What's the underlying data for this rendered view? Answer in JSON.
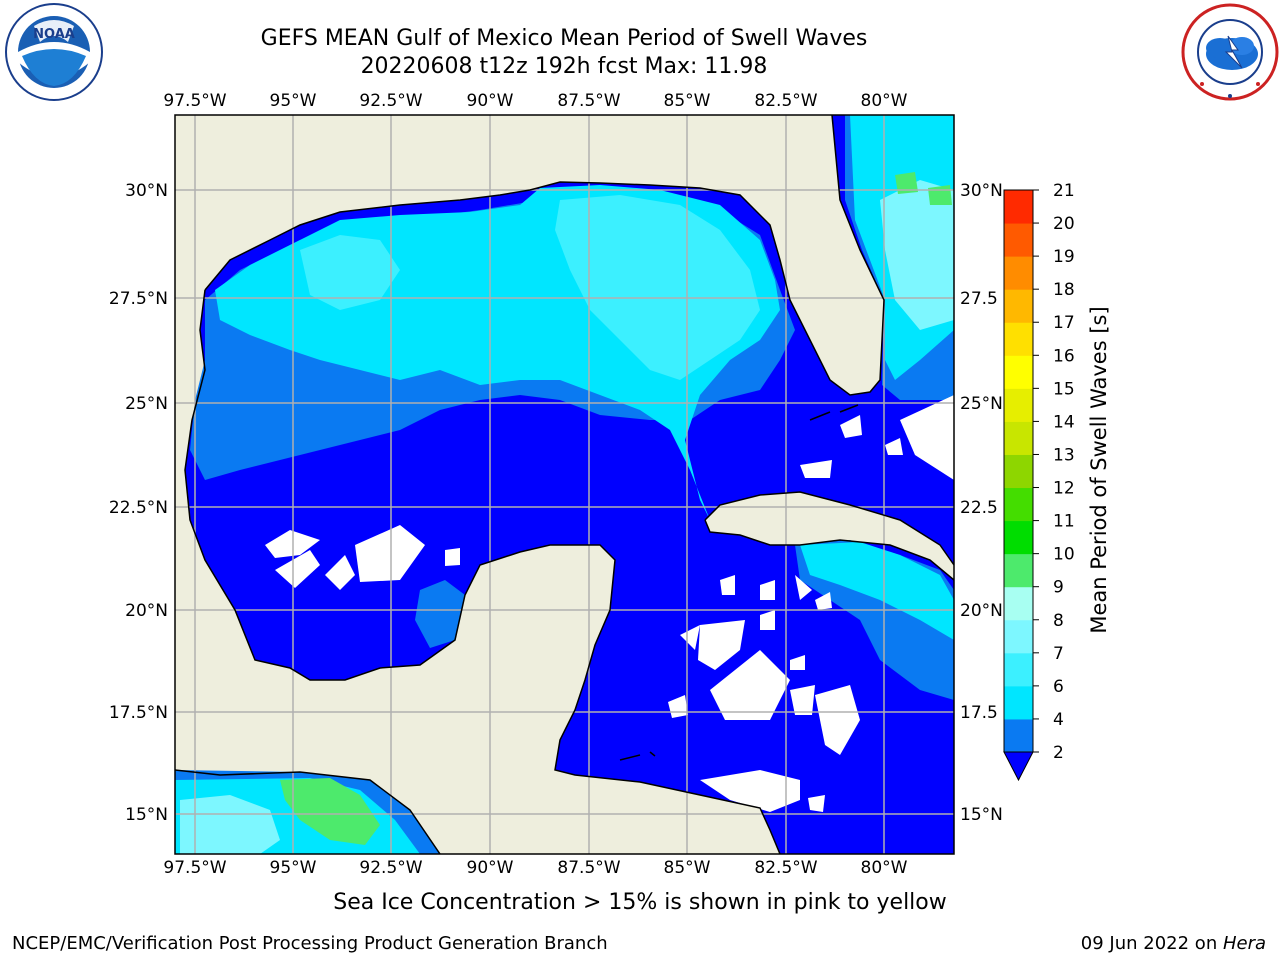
{
  "header": {
    "title": "GEFS MEAN Gulf of Mexico Mean Period of Swell Waves",
    "subtitle": "20220608 t12z 192h fcst   Max: 11.98"
  },
  "map": {
    "lon_labels": [
      "97.5°W",
      "95°W",
      "92.5°W",
      "90°W",
      "87.5°W",
      "85°W",
      "82.5°W",
      "80°W"
    ],
    "lat_labels_left": [
      "30°N",
      "27.5°N",
      "25°N",
      "22.5°N",
      "20°N",
      "17.5°N",
      "15°N"
    ],
    "lat_labels_right": [
      "30°N",
      "27.5",
      "25°N",
      "22.5",
      "20°N",
      "17.5",
      "15°N"
    ],
    "colors": {
      "land": "#eeeedd",
      "no_data": "#ffffff",
      "grid": "#b0b0b0",
      "coast": "#000000"
    }
  },
  "colorbar": {
    "label": "Mean Period of Swell Waves [s]",
    "ticks": [
      "2",
      "4",
      "6",
      "7",
      "8",
      "9",
      "10",
      "11",
      "12",
      "13",
      "14",
      "15",
      "16",
      "17",
      "18",
      "19",
      "20",
      "21"
    ],
    "colors": [
      "#0a7af2",
      "#00e6ff",
      "#3cf0ff",
      "#7df7ff",
      "#a8fff2",
      "#4dea6c",
      "#00dd00",
      "#44dd00",
      "#8ed600",
      "#c8e600",
      "#e6ee00",
      "#ffff00",
      "#ffe000",
      "#ffb800",
      "#ff8c00",
      "#ff5a00",
      "#ff2a00",
      "#ff0000"
    ],
    "extend_color": "#0000ff"
  },
  "note": "Sea Ice Concentration > 15% is shown in pink to yellow",
  "footer": {
    "left": "NCEP/EMC/Verification Post Processing Product Generation Branch",
    "right_date": "09 Jun 2022 on ",
    "right_host": "Hera"
  }
}
